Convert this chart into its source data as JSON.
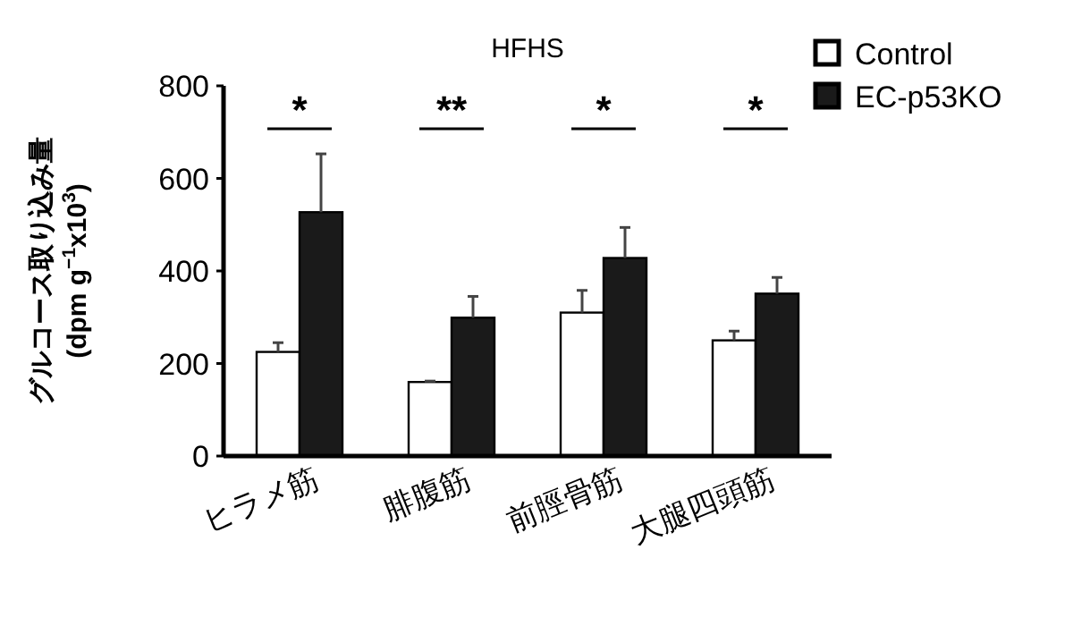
{
  "chart_data": {
    "type": "bar",
    "title": "HFHS",
    "ylabel": "グルコース取り込み量\n(dpm g$^{−1}$x10$^{3}$)",
    "categories": [
      "ヒラメ筋",
      "腓腹筋",
      "前脛骨筋",
      "大腿四頭筋"
    ],
    "series": [
      {
        "name": "Control",
        "color": "#ffffff",
        "values": [
          225,
          160,
          310,
          250
        ],
        "errors": [
          [
            225,
            245
          ],
          [
            160,
            162
          ],
          [
            310,
            358
          ],
          [
            250,
            270
          ]
        ]
      },
      {
        "name": "EC-p53KO",
        "color": "#1a1a1a",
        "values": [
          527,
          299,
          428,
          351
        ],
        "errors": [
          [
            527,
            653
          ],
          [
            299,
            345
          ],
          [
            428,
            494
          ],
          [
            351,
            386
          ]
        ]
      }
    ],
    "ylim": [
      0,
      800
    ],
    "yticks": [
      0,
      200,
      400,
      600,
      800
    ],
    "grid": false,
    "legend": "top right",
    "annotations": [
      "*",
      "**",
      "*",
      "*"
    ]
  }
}
